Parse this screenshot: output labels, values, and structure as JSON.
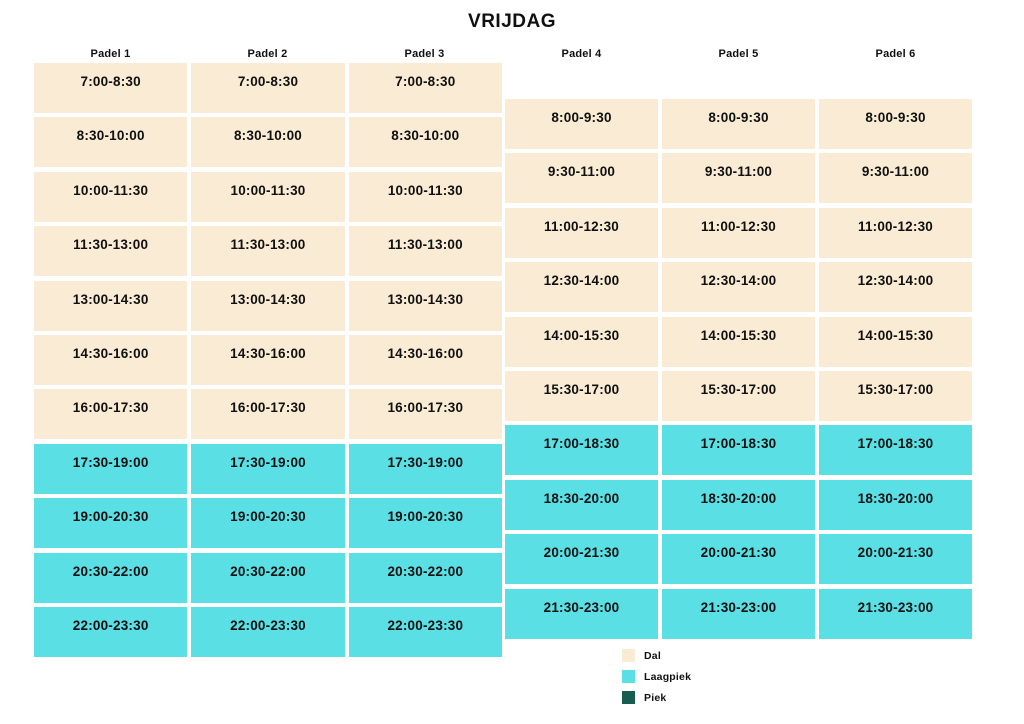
{
  "title": "VRIJDAG",
  "colors": {
    "background": "#FFFFFF",
    "text": "#101010",
    "dal": "#FAECD4",
    "laagpiek": "#59DFE4",
    "piek": "#175C4F"
  },
  "chart_data": {
    "type": "table",
    "title": "VRIJDAG",
    "columns": [
      "Padel 1",
      "Padel 2",
      "Padel 3",
      "Padel 4",
      "Padel 5",
      "Padel 6"
    ],
    "groups": [
      {
        "courts": [
          "Padel 1",
          "Padel 2",
          "Padel 3"
        ],
        "slots": [
          {
            "time": "7:00-8:30",
            "tier": "dal"
          },
          {
            "time": "8:30-10:00",
            "tier": "dal"
          },
          {
            "time": "10:00-11:30",
            "tier": "dal"
          },
          {
            "time": "11:30-13:00",
            "tier": "dal"
          },
          {
            "time": "13:00-14:30",
            "tier": "dal"
          },
          {
            "time": "14:30-16:00",
            "tier": "dal"
          },
          {
            "time": "16:00-17:30",
            "tier": "dal"
          },
          {
            "time": "17:30-19:00",
            "tier": "laagpiek"
          },
          {
            "time": "19:00-20:30",
            "tier": "laagpiek"
          },
          {
            "time": "20:30-22:00",
            "tier": "laagpiek"
          },
          {
            "time": "22:00-23:30",
            "tier": "laagpiek"
          }
        ]
      },
      {
        "courts": [
          "Padel 4",
          "Padel 5",
          "Padel 6"
        ],
        "slots": [
          {
            "time": "8:00-9:30",
            "tier": "dal"
          },
          {
            "time": "9:30-11:00",
            "tier": "dal"
          },
          {
            "time": "11:00-12:30",
            "tier": "dal"
          },
          {
            "time": "12:30-14:00",
            "tier": "dal"
          },
          {
            "time": "14:00-15:30",
            "tier": "dal"
          },
          {
            "time": "15:30-17:00",
            "tier": "dal"
          },
          {
            "time": "17:00-18:30",
            "tier": "laagpiek"
          },
          {
            "time": "18:30-20:00",
            "tier": "laagpiek"
          },
          {
            "time": "20:00-21:30",
            "tier": "laagpiek"
          },
          {
            "time": "21:30-23:00",
            "tier": "laagpiek"
          }
        ]
      }
    ],
    "legend": {
      "position": "bottom-center",
      "items": [
        {
          "label": "Dal",
          "tier": "dal",
          "color": "#FAECD4"
        },
        {
          "label": "Laagpiek",
          "tier": "laagpiek",
          "color": "#59DFE4"
        },
        {
          "label": "Piek",
          "tier": "piek",
          "color": "#175C4F"
        }
      ]
    }
  }
}
